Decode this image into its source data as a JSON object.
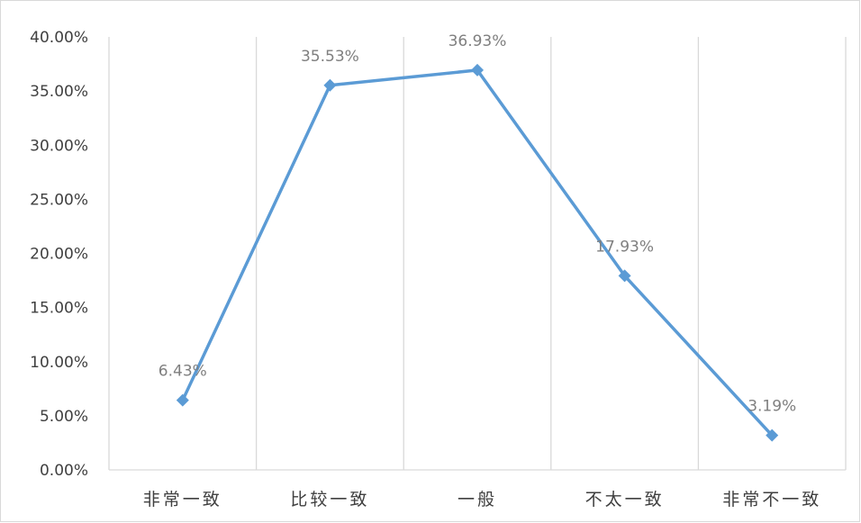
{
  "chart_data": {
    "type": "line",
    "title": "",
    "xlabel": "",
    "ylabel": "",
    "categories": [
      "非常一致",
      "比较一致",
      "一般",
      "不太一致",
      "非常不一致"
    ],
    "values": [
      6.43,
      35.53,
      36.93,
      17.93,
      3.19
    ],
    "data_labels": [
      "6.43%",
      "35.53%",
      "36.93%",
      "17.93%",
      "3.19%"
    ],
    "ylim": [
      0,
      40
    ],
    "yticks": [
      0,
      5,
      10,
      15,
      20,
      25,
      30,
      35,
      40
    ],
    "ytick_labels": [
      "0.00%",
      "5.00%",
      "10.00%",
      "15.00%",
      "20.00%",
      "25.00%",
      "30.00%",
      "35.00%",
      "40.00%"
    ],
    "grid": "vertical",
    "legend": "none",
    "colors": {
      "line": "#5b9bd5",
      "grid": "#d9d9d9",
      "axis_text": "#404040",
      "label_text": "#7f7f7f"
    }
  }
}
